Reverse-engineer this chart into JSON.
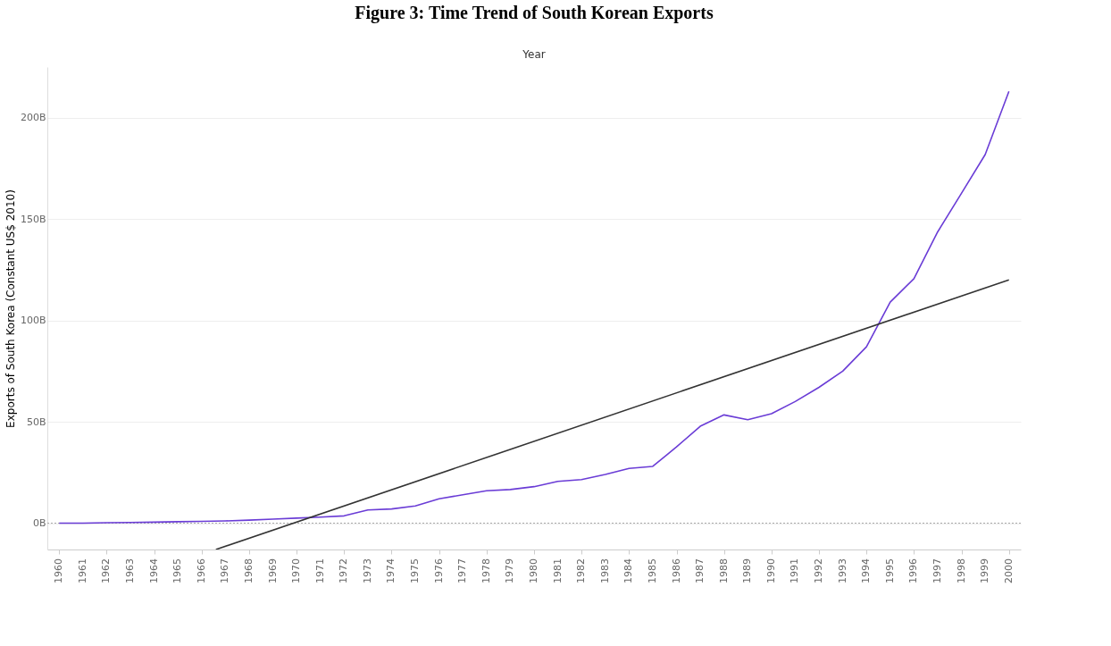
{
  "chart_data": {
    "type": "line",
    "title": "Figure 3: Time Trend of South Korean Exports",
    "xlabel": "Year",
    "ylabel": "Exports of South Korea (Constant US$ 2010)",
    "x": [
      1960,
      1961,
      1962,
      1963,
      1964,
      1965,
      1966,
      1967,
      1968,
      1969,
      1970,
      1971,
      1972,
      1973,
      1974,
      1975,
      1976,
      1977,
      1978,
      1979,
      1980,
      1981,
      1982,
      1983,
      1984,
      1985,
      1986,
      1987,
      1988,
      1989,
      1990,
      1991,
      1992,
      1993,
      1994,
      1995,
      1996,
      1997,
      1998,
      1999,
      2000
    ],
    "series": [
      {
        "color": "#6a3cd6",
        "values": [
          0,
          0,
          0.2,
          0.3,
          0.5,
          0.7,
          0.9,
          1.1,
          1.5,
          2,
          2.5,
          3,
          3.6,
          6.5,
          7,
          8.5,
          12,
          14,
          16,
          16.6,
          18,
          20.6,
          21.5,
          24,
          27,
          28,
          37.6,
          47.8,
          53.4,
          51,
          54,
          60,
          67,
          75,
          87,
          109,
          120.6,
          143.7,
          162.7,
          181.8,
          213
        ]
      },
      {
        "type": "line",
        "color": "#333333",
        "x": [
          1966.6,
          2000
        ],
        "values": [
          -13,
          120
        ]
      }
    ],
    "xlim": [
      1959.5,
      2000.5
    ],
    "xticks": [
      1960,
      1961,
      1962,
      1963,
      1964,
      1965,
      1966,
      1967,
      1968,
      1969,
      1970,
      1971,
      1972,
      1973,
      1974,
      1975,
      1976,
      1977,
      1978,
      1979,
      1980,
      1981,
      1982,
      1983,
      1984,
      1985,
      1986,
      1987,
      1988,
      1989,
      1990,
      1991,
      1992,
      1993,
      1994,
      1995,
      1996,
      1997,
      1998,
      1999,
      2000
    ],
    "ylim": [
      -13,
      225
    ],
    "yticks": [
      {
        "value": 0,
        "label": "0B"
      },
      {
        "value": 50,
        "label": "50B"
      },
      {
        "value": 100,
        "label": "100B"
      },
      {
        "value": 150,
        "label": "150B"
      },
      {
        "value": 200,
        "label": "200B"
      }
    ],
    "ref_lines": [
      {
        "axis": "y",
        "value": 0,
        "line_style": "dotted",
        "color": "#aaaaaa"
      }
    ],
    "grid": "y",
    "marker": "none",
    "line_style": "solid"
  }
}
